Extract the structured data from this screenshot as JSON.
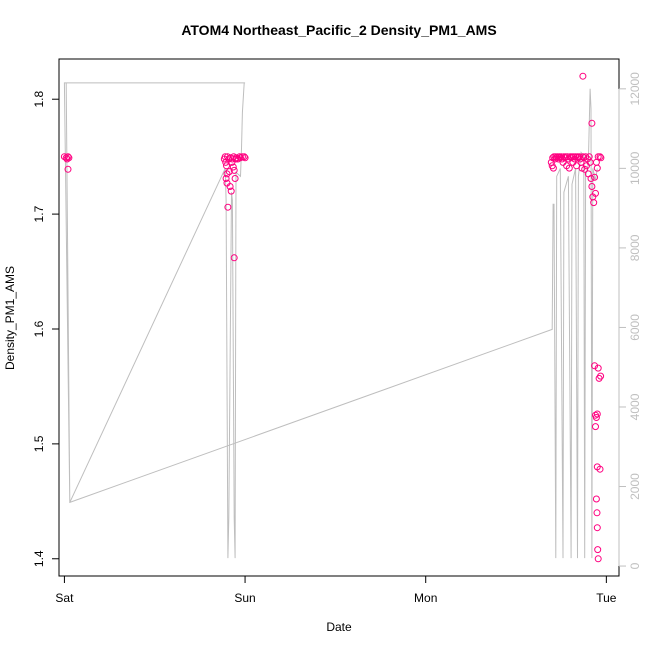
{
  "chart_data": {
    "type": "scatter",
    "title": "ATOM4 Northeast_Pacific_2 Density_PM1_AMS",
    "xlabel": "Date",
    "ylabel": "Density_PM1_AMS",
    "xlim": [
      -0.03,
      3.07
    ],
    "ylim": [
      1.385,
      1.835
    ],
    "y2lim": [
      -250,
      12750
    ],
    "x_ticks": [
      {
        "value": 0,
        "label": "Sat"
      },
      {
        "value": 1,
        "label": "Sun"
      },
      {
        "value": 2,
        "label": "Mon"
      },
      {
        "value": 3,
        "label": "Tue"
      }
    ],
    "y_ticks": [
      {
        "value": 1.4,
        "label": "1.4"
      },
      {
        "value": 1.5,
        "label": "1.5"
      },
      {
        "value": 1.6,
        "label": "1.6"
      },
      {
        "value": 1.7,
        "label": "1.7"
      },
      {
        "value": 1.8,
        "label": "1.8"
      }
    ],
    "y2_ticks": [
      {
        "value": 0,
        "label": "0"
      },
      {
        "value": 2000,
        "label": "2000"
      },
      {
        "value": 4000,
        "label": "4000"
      },
      {
        "value": 6000,
        "label": "6000"
      },
      {
        "value": 8000,
        "label": "8000"
      },
      {
        "value": 10000,
        "label": "10000"
      },
      {
        "value": 12000,
        "label": "12000"
      }
    ],
    "grid": false,
    "colors": {
      "points": "#ff0080",
      "line": "#bebebe",
      "axis": "#000000",
      "right_axis": "#bfbfbf"
    },
    "points": [
      {
        "x": 0.0,
        "y": 1.75
      },
      {
        "x": 0.01,
        "y": 1.749
      },
      {
        "x": 0.015,
        "y": 1.748
      },
      {
        "x": 0.02,
        "y": 1.75
      },
      {
        "x": 0.025,
        "y": 1.749
      },
      {
        "x": 0.02,
        "y": 1.739
      },
      {
        "x": 0.885,
        "y": 1.748
      },
      {
        "x": 0.89,
        "y": 1.75
      },
      {
        "x": 0.893,
        "y": 1.745
      },
      {
        "x": 0.897,
        "y": 1.742
      },
      {
        "x": 0.9,
        "y": 1.735
      },
      {
        "x": 0.903,
        "y": 1.75
      },
      {
        "x": 0.895,
        "y": 1.731
      },
      {
        "x": 0.9,
        "y": 1.727
      },
      {
        "x": 0.905,
        "y": 1.706
      },
      {
        "x": 0.91,
        "y": 1.748
      },
      {
        "x": 0.913,
        "y": 1.737
      },
      {
        "x": 0.917,
        "y": 1.724
      },
      {
        "x": 0.92,
        "y": 1.749
      },
      {
        "x": 0.923,
        "y": 1.72
      },
      {
        "x": 0.927,
        "y": 1.745
      },
      {
        "x": 0.93,
        "y": 1.748
      },
      {
        "x": 0.935,
        "y": 1.741
      },
      {
        "x": 0.937,
        "y": 1.75
      },
      {
        "x": 0.94,
        "y": 1.738
      },
      {
        "x": 0.945,
        "y": 1.731
      },
      {
        "x": 0.948,
        "y": 1.748
      },
      {
        "x": 0.95,
        "y": 1.749
      },
      {
        "x": 0.94,
        "y": 1.662
      },
      {
        "x": 0.96,
        "y": 1.748
      },
      {
        "x": 0.97,
        "y": 1.75
      },
      {
        "x": 0.975,
        "y": 1.749
      },
      {
        "x": 0.985,
        "y": 1.75
      },
      {
        "x": 0.995,
        "y": 1.75
      },
      {
        "x": 1.0,
        "y": 1.749
      },
      {
        "x": 2.695,
        "y": 1.745
      },
      {
        "x": 2.7,
        "y": 1.742
      },
      {
        "x": 2.703,
        "y": 1.749
      },
      {
        "x": 2.707,
        "y": 1.74
      },
      {
        "x": 2.71,
        "y": 1.75
      },
      {
        "x": 2.715,
        "y": 1.748
      },
      {
        "x": 2.72,
        "y": 1.75
      },
      {
        "x": 2.725,
        "y": 1.749
      },
      {
        "x": 2.73,
        "y": 1.75
      },
      {
        "x": 2.735,
        "y": 1.748
      },
      {
        "x": 2.74,
        "y": 1.75
      },
      {
        "x": 2.745,
        "y": 1.749
      },
      {
        "x": 2.75,
        "y": 1.75
      },
      {
        "x": 2.755,
        "y": 1.748
      },
      {
        "x": 2.76,
        "y": 1.745
      },
      {
        "x": 2.765,
        "y": 1.75
      },
      {
        "x": 2.77,
        "y": 1.749
      },
      {
        "x": 2.775,
        "y": 1.75
      },
      {
        "x": 2.78,
        "y": 1.742
      },
      {
        "x": 2.785,
        "y": 1.75
      },
      {
        "x": 2.79,
        "y": 1.748
      },
      {
        "x": 2.795,
        "y": 1.74
      },
      {
        "x": 2.8,
        "y": 1.75
      },
      {
        "x": 2.805,
        "y": 1.749
      },
      {
        "x": 2.81,
        "y": 1.75
      },
      {
        "x": 2.815,
        "y": 1.745
      },
      {
        "x": 2.82,
        "y": 1.75
      },
      {
        "x": 2.825,
        "y": 1.748
      },
      {
        "x": 2.83,
        "y": 1.75
      },
      {
        "x": 2.835,
        "y": 1.742
      },
      {
        "x": 2.84,
        "y": 1.75
      },
      {
        "x": 2.845,
        "y": 1.749
      },
      {
        "x": 2.85,
        "y": 1.75
      },
      {
        "x": 2.855,
        "y": 1.748
      },
      {
        "x": 2.86,
        "y": 1.745
      },
      {
        "x": 2.865,
        "y": 1.74
      },
      {
        "x": 2.87,
        "y": 1.75
      },
      {
        "x": 2.875,
        "y": 1.749
      },
      {
        "x": 2.88,
        "y": 1.739
      },
      {
        "x": 2.885,
        "y": 1.75
      },
      {
        "x": 2.89,
        "y": 1.742
      },
      {
        "x": 2.895,
        "y": 1.748
      },
      {
        "x": 2.9,
        "y": 1.735
      },
      {
        "x": 2.905,
        "y": 1.75
      },
      {
        "x": 2.91,
        "y": 1.745
      },
      {
        "x": 2.915,
        "y": 1.731
      },
      {
        "x": 2.92,
        "y": 1.724
      },
      {
        "x": 2.925,
        "y": 1.715
      },
      {
        "x": 2.93,
        "y": 1.71
      },
      {
        "x": 2.935,
        "y": 1.732
      },
      {
        "x": 2.94,
        "y": 1.718
      },
      {
        "x": 2.945,
        "y": 1.745
      },
      {
        "x": 2.95,
        "y": 1.74
      },
      {
        "x": 2.955,
        "y": 1.75
      },
      {
        "x": 2.965,
        "y": 1.75
      },
      {
        "x": 2.97,
        "y": 1.749
      },
      {
        "x": 2.87,
        "y": 1.82
      },
      {
        "x": 2.92,
        "y": 1.779
      },
      {
        "x": 2.935,
        "y": 1.568
      },
      {
        "x": 2.955,
        "y": 1.566
      },
      {
        "x": 2.96,
        "y": 1.557
      },
      {
        "x": 2.968,
        "y": 1.559
      },
      {
        "x": 2.94,
        "y": 1.525
      },
      {
        "x": 2.945,
        "y": 1.523
      },
      {
        "x": 2.95,
        "y": 1.526
      },
      {
        "x": 2.94,
        "y": 1.515
      },
      {
        "x": 2.95,
        "y": 1.48
      },
      {
        "x": 2.965,
        "y": 1.478
      },
      {
        "x": 2.945,
        "y": 1.452
      },
      {
        "x": 2.948,
        "y": 1.44
      },
      {
        "x": 2.95,
        "y": 1.427
      },
      {
        "x": 2.952,
        "y": 1.408
      },
      {
        "x": 2.955,
        "y": 1.4
      }
    ],
    "line": [
      {
        "x": 0.0,
        "y": 12150
      },
      {
        "x": 1.0,
        "y": 12150
      },
      {
        "x": 0.995,
        "y": 12150
      },
      {
        "x": 0.985,
        "y": 11400
      },
      {
        "x": 0.98,
        "y": 10500
      },
      {
        "x": 0.975,
        "y": 9800
      },
      {
        "x": 0.95,
        "y": 9900
      },
      {
        "x": 0.945,
        "y": 200
      },
      {
        "x": 0.94,
        "y": 1200
      },
      {
        "x": 0.93,
        "y": 9200
      },
      {
        "x": 0.925,
        "y": 9400
      },
      {
        "x": 0.91,
        "y": 1200
      },
      {
        "x": 0.905,
        "y": 200
      },
      {
        "x": 0.895,
        "y": 9200
      },
      {
        "x": 0.89,
        "y": 10000
      },
      {
        "x": 0.03,
        "y": 1600
      },
      {
        "x": 0.01,
        "y": 12150
      },
      {
        "x": 0.0,
        "y": 12150
      },
      {
        "x": 0.03,
        "y": 1600
      },
      {
        "x": 2.7,
        "y": 5950
      },
      {
        "x": 2.705,
        "y": 9100
      },
      {
        "x": 2.71,
        "y": 9100
      },
      {
        "x": 2.72,
        "y": 200
      },
      {
        "x": 2.725,
        "y": 9800
      },
      {
        "x": 2.745,
        "y": 10000
      },
      {
        "x": 2.76,
        "y": 200
      },
      {
        "x": 2.765,
        "y": 9400
      },
      {
        "x": 2.79,
        "y": 9800
      },
      {
        "x": 2.805,
        "y": 200
      },
      {
        "x": 2.81,
        "y": 9600
      },
      {
        "x": 2.83,
        "y": 10000
      },
      {
        "x": 2.84,
        "y": 200
      },
      {
        "x": 2.845,
        "y": 9800
      },
      {
        "x": 2.86,
        "y": 10400
      },
      {
        "x": 2.875,
        "y": 10300
      },
      {
        "x": 2.88,
        "y": 200
      },
      {
        "x": 2.885,
        "y": 9800
      },
      {
        "x": 2.9,
        "y": 10100
      },
      {
        "x": 2.91,
        "y": 12000
      },
      {
        "x": 2.915,
        "y": 11500
      },
      {
        "x": 2.92,
        "y": 200
      },
      {
        "x": 2.925,
        "y": 10000
      },
      {
        "x": 2.94,
        "y": 9700
      },
      {
        "x": 2.95,
        "y": 10000
      }
    ]
  }
}
